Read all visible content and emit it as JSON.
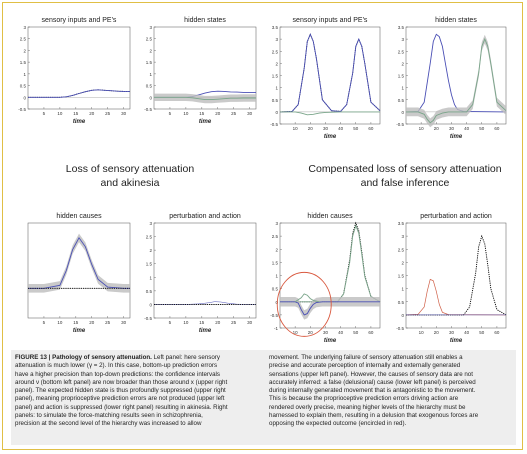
{
  "headings": {
    "left": [
      "Loss of sensory attenuation",
      "and akinesia"
    ],
    "right": [
      "Compensated loss of sensory attenuation",
      "and false inference"
    ]
  },
  "panels": {
    "l_top_1": {
      "title": "sensory inputs and PE's",
      "xlabel": "time"
    },
    "l_top_2": {
      "title": "hidden states",
      "xlabel": "time"
    },
    "r_top_1": {
      "title": "sensory inputs and PE's",
      "xlabel": "time"
    },
    "r_top_2": {
      "title": "hidden states",
      "xlabel": "time"
    },
    "l_bot_1": {
      "title": "hidden causes",
      "xlabel": "time"
    },
    "l_bot_2": {
      "title": "perturbation and action",
      "xlabel": "time"
    },
    "r_bot_1": {
      "title": "hidden causes",
      "xlabel": "time"
    },
    "r_bot_2": {
      "title": "perturbation and action",
      "xlabel": "time"
    }
  },
  "axes": {
    "left_y_ticks": [
      "3",
      "2.5",
      "2",
      "1.5",
      "1",
      "0.5",
      "0",
      "-0.5"
    ],
    "left_x_ticks": [
      "5",
      "10",
      "15",
      "20",
      "25",
      "30"
    ],
    "right_top_y_ticks": [
      "3.5",
      "3",
      "2.5",
      "2",
      "1.5",
      "1",
      "0.5",
      "0",
      "-0.5"
    ],
    "right_bot_y_ticks": [
      "3",
      "2.5",
      "2",
      "1.5",
      "1",
      "0.5",
      "0",
      "-0.5",
      "-1"
    ],
    "right_x_ticks": [
      "10",
      "20",
      "30",
      "40",
      "50",
      "60"
    ]
  },
  "caption": {
    "title": "FIGURE 13 | Pathology of sensory attenuation.",
    "left_text": [
      " Left panel: here sensory",
      "attenuation is much lower (γ = 2). In this case, bottom-up prediction errors",
      "have a higher precision than top-down predictions: the confidence intervals",
      "around ν (bottom left panel) are now broader than those around x (upper right",
      "panel). The expected hidden state is thus profoundly suppressed (upper right",
      "panel), meaning proprioceptive prediction errors are not produced (upper left",
      "panel) and action is suppressed (lower right panel) resulting in akinesia. Right",
      "panels: to simulate the force-matching results seen in schizophrenia,",
      "precision at the second level of the hierarchy was increased to allow"
    ],
    "right_text": [
      "movement. The underlying failure of sensory attenuation still enables a",
      "precise and accurate perception of internally and externally generated",
      "sensations (upper left panel). However, the causes of sensory data are not",
      "accurately inferred: a false (delusional) cause (lower left panel) is perceived",
      "during internally generated movement that is antagonistic to the movement.",
      "This is because the proprioceptive prediction errors driving action are",
      "rendered overly precise, meaning higher levels of the hierarchy must be",
      "harnessed to explain them, resulting in a delusion that exogenous forces are",
      "opposing the expected outcome (encircled in red)."
    ]
  },
  "colors": {
    "blue": "#4a4fb5",
    "green": "#7aa58a",
    "red": "#d06048",
    "band": "#bdbdbd",
    "circle": "#d9593f"
  },
  "chart_data": [
    {
      "panel": "l_top_1",
      "type": "line",
      "xlim": [
        0,
        32
      ],
      "ylim": [
        -0.5,
        3
      ],
      "series": [
        {
          "style": "black-dotted",
          "x": [
            0,
            5,
            10,
            12,
            14,
            16,
            18,
            20,
            22,
            24,
            26,
            28,
            30,
            32
          ],
          "y": [
            0,
            0,
            0,
            0.02,
            0.08,
            0.16,
            0.24,
            0.3,
            0.32,
            0.3,
            0.28,
            0.26,
            0.25,
            0.25
          ]
        },
        {
          "style": "blue",
          "x": [
            0,
            5,
            10,
            12,
            14,
            16,
            18,
            20,
            22,
            24,
            26,
            28,
            30,
            32
          ],
          "y": [
            0,
            0,
            0,
            0.02,
            0.08,
            0.16,
            0.24,
            0.3,
            0.32,
            0.3,
            0.28,
            0.26,
            0.25,
            0.25
          ]
        }
      ]
    },
    {
      "panel": "l_top_2",
      "type": "line",
      "xlim": [
        0,
        32
      ],
      "ylim": [
        -0.5,
        3
      ],
      "series": [
        {
          "style": "blue",
          "x": [
            0,
            5,
            10,
            12,
            14,
            16,
            18,
            20,
            22,
            24,
            26,
            28,
            30,
            32
          ],
          "y": [
            0,
            0,
            0,
            0.03,
            0.1,
            0.18,
            0.24,
            0.26,
            0.25,
            0.23,
            0.22,
            0.21,
            0.2,
            0.2
          ]
        },
        {
          "style": "green-band",
          "x": [
            0,
            5,
            10,
            12,
            14,
            16,
            18,
            20,
            22,
            24,
            26,
            28,
            30,
            32
          ],
          "y": [
            0,
            0,
            0,
            -0.02,
            -0.06,
            -0.1,
            -0.1,
            -0.08,
            -0.06,
            -0.04,
            -0.04,
            -0.03,
            -0.03,
            -0.03
          ]
        }
      ]
    },
    {
      "panel": "r_top_1",
      "type": "line",
      "xlim": [
        0,
        66
      ],
      "ylim": [
        -0.5,
        3.5
      ],
      "series": [
        {
          "style": "black-dotted",
          "x": [
            0,
            8,
            12,
            16,
            18,
            20,
            22,
            24,
            28,
            34,
            40,
            44,
            48,
            50,
            52,
            54,
            56,
            60,
            66
          ],
          "y": [
            0,
            0.02,
            0.3,
            1.8,
            2.9,
            3.2,
            2.9,
            2.2,
            0.5,
            0.05,
            0.02,
            0.3,
            1.6,
            2.7,
            3.0,
            2.7,
            2.0,
            0.4,
            0.05
          ]
        },
        {
          "style": "blue",
          "x": [
            0,
            8,
            12,
            16,
            18,
            20,
            22,
            24,
            28,
            34,
            40,
            44,
            48,
            50,
            52,
            54,
            56,
            60,
            66
          ],
          "y": [
            0,
            0.02,
            0.3,
            1.8,
            2.9,
            3.2,
            2.9,
            2.2,
            0.5,
            0.05,
            0.02,
            0.3,
            1.6,
            2.7,
            3.0,
            2.7,
            2.0,
            0.4,
            0.05
          ]
        },
        {
          "style": "green",
          "x": [
            0,
            10,
            14,
            18,
            22,
            26,
            30,
            40,
            66
          ],
          "y": [
            0,
            0,
            -0.05,
            -0.12,
            -0.1,
            -0.05,
            -0.02,
            0,
            0
          ]
        }
      ]
    },
    {
      "panel": "r_top_2",
      "type": "line",
      "xlim": [
        0,
        66
      ],
      "ylim": [
        -0.5,
        3.5
      ],
      "series": [
        {
          "style": "blue",
          "x": [
            0,
            8,
            12,
            16,
            18,
            20,
            22,
            24,
            26,
            28,
            30,
            32,
            34,
            38,
            66
          ],
          "y": [
            0,
            0.02,
            0.4,
            2.0,
            2.9,
            3.2,
            3.1,
            2.7,
            2.0,
            1.3,
            0.7,
            0.3,
            0.1,
            0.02,
            0
          ]
        },
        {
          "style": "green-band",
          "x": [
            0,
            8,
            12,
            14,
            16,
            18,
            20,
            24,
            28,
            34,
            40,
            44,
            48,
            50,
            52,
            54,
            56,
            60,
            66
          ],
          "y": [
            0,
            0,
            -0.1,
            -0.3,
            -0.45,
            -0.35,
            -0.15,
            -0.05,
            0,
            0,
            0,
            0.3,
            1.6,
            2.7,
            3.0,
            2.7,
            2.0,
            0.4,
            0.05
          ]
        }
      ]
    },
    {
      "panel": "l_bot_1",
      "type": "line",
      "xlim": [
        0,
        32
      ],
      "ylim": [
        -0.5,
        1.1
      ],
      "series": [
        {
          "style": "blue-band",
          "x": [
            0,
            5,
            10,
            12,
            14,
            16,
            18,
            20,
            22,
            25,
            30,
            32
          ],
          "y": [
            0,
            0,
            0.05,
            0.3,
            0.65,
            0.85,
            0.7,
            0.4,
            0.15,
            0.02,
            0,
            0
          ]
        },
        {
          "style": "black-dotted",
          "x": [
            0,
            32
          ],
          "y": [
            0,
            0
          ]
        }
      ]
    },
    {
      "panel": "l_bot_2",
      "type": "line",
      "xlim": [
        0,
        32
      ],
      "ylim": [
        -0.5,
        3
      ],
      "series": [
        {
          "style": "blue-faint",
          "x": [
            0,
            10,
            14,
            17,
            19,
            21,
            23,
            26,
            32
          ],
          "y": [
            0,
            0,
            0.02,
            0.06,
            0.1,
            0.09,
            0.05,
            0.01,
            0
          ]
        },
        {
          "style": "black-dotted",
          "x": [
            0,
            32
          ],
          "y": [
            0,
            0
          ]
        }
      ]
    },
    {
      "panel": "r_bot_1",
      "type": "line",
      "xlim": [
        0,
        66
      ],
      "ylim": [
        -1,
        3
      ],
      "series": [
        {
          "style": "black-dotted",
          "x": [
            0,
            38,
            42,
            46,
            48,
            50,
            52,
            54,
            56,
            60,
            66
          ],
          "y": [
            0,
            0,
            0.3,
            1.6,
            2.6,
            3.0,
            2.7,
            1.9,
            1.0,
            0.2,
            0
          ]
        },
        {
          "style": "green",
          "x": [
            0,
            38,
            42,
            46,
            48,
            50,
            52,
            54,
            56,
            60,
            66
          ],
          "y": [
            0,
            0,
            0.3,
            1.5,
            2.5,
            2.9,
            2.6,
            1.8,
            0.95,
            0.2,
            0
          ]
        },
        {
          "style": "blue-band",
          "x": [
            0,
            10,
            12,
            14,
            16,
            18,
            20,
            22,
            24,
            28,
            66
          ],
          "y": [
            0,
            0,
            -0.05,
            -0.3,
            -0.5,
            -0.45,
            -0.25,
            -0.1,
            -0.03,
            0,
            0
          ]
        },
        {
          "style": "green",
          "x": [
            10,
            14,
            16,
            18,
            20,
            22,
            26
          ],
          "y": [
            0,
            0.15,
            0.3,
            0.25,
            0.12,
            0.05,
            0
          ]
        }
      ]
    },
    {
      "panel": "r_bot_2",
      "type": "line",
      "xlim": [
        0,
        66
      ],
      "ylim": [
        -0.5,
        3.5
      ],
      "series": [
        {
          "style": "red-solid",
          "x": [
            0,
            8,
            12,
            14,
            16,
            18,
            20,
            22,
            24,
            28,
            66
          ],
          "y": [
            0,
            0.02,
            0.3,
            0.9,
            1.35,
            1.3,
            0.9,
            0.4,
            0.1,
            0.01,
            0
          ]
        },
        {
          "style": "black-dotted",
          "x": [
            0,
            38,
            42,
            46,
            48,
            50,
            52,
            54,
            56,
            60,
            66
          ],
          "y": [
            0,
            0,
            0.3,
            1.6,
            2.6,
            3.0,
            2.7,
            1.9,
            1.0,
            0.2,
            0
          ]
        },
        {
          "style": "blue-faint",
          "x": [
            0,
            66
          ],
          "y": [
            0,
            0
          ]
        }
      ]
    }
  ]
}
